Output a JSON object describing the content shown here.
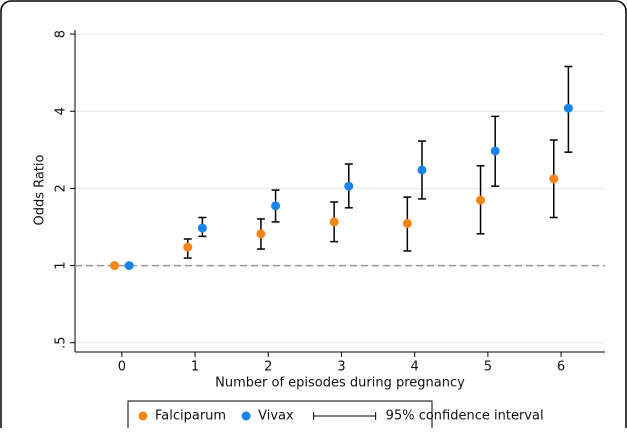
{
  "chart_data": {
    "type": "errorbar",
    "x_label": "Number of episodes during pregnancy",
    "y_label": "Odds Ratio",
    "x": [
      0,
      1,
      2,
      3,
      4,
      5,
      6
    ],
    "xlim": [
      -0.64,
      6.6
    ],
    "xticks": [
      0,
      1,
      2,
      3,
      4,
      5,
      6
    ],
    "ylim": [
      0.46,
      8.3
    ],
    "yticks": [
      {
        "value": 0.5,
        "label": ".5"
      },
      1,
      2,
      4,
      8
    ],
    "log_y": true,
    "grid": true,
    "reference_line": 1,
    "ci_label": "95% confidence interval",
    "legend": "bottom",
    "series": [
      {
        "name": "Falciparum",
        "color": "#f58518",
        "values": [
          1.0,
          1.18,
          1.33,
          1.48,
          1.46,
          1.8,
          2.18
        ],
        "lower": [
          null,
          1.07,
          1.16,
          1.24,
          1.14,
          1.33,
          1.54
        ],
        "upper": [
          null,
          1.27,
          1.52,
          1.77,
          1.85,
          2.45,
          3.09
        ]
      },
      {
        "name": "Vivax",
        "color": "#1a85e8",
        "values": [
          1.0,
          1.4,
          1.71,
          2.04,
          2.36,
          2.8,
          4.11
        ],
        "lower": [
          null,
          1.3,
          1.48,
          1.68,
          1.82,
          2.04,
          2.77
        ],
        "upper": [
          null,
          1.54,
          1.97,
          2.49,
          3.06,
          3.82,
          5.98
        ]
      }
    ]
  }
}
